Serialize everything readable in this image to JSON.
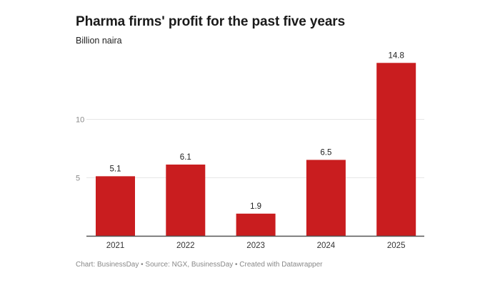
{
  "header": {
    "title": "Pharma firms' profit for the past five years",
    "subtitle": "Billion naira"
  },
  "footer": {
    "text": "Chart: BusinessDay • Source: NGX, BusinessDay • Created with Datawrapper"
  },
  "colors": {
    "bar": "#c91d1f",
    "grid": "#e6e6e6",
    "axis": "#555555"
  },
  "chart_data": {
    "type": "bar",
    "title": "Pharma firms' profit for the past five years",
    "subtitle": "Billion naira",
    "xlabel": "",
    "ylabel": "Billion naira",
    "categories": [
      "2021",
      "2022",
      "2023",
      "2024",
      "2025"
    ],
    "values": [
      5.1,
      6.1,
      1.9,
      6.5,
      14.8
    ],
    "data_labels": [
      "5.1",
      "6.1",
      "1.9",
      "6.5",
      "14.8"
    ],
    "y_ticks": [
      5,
      10
    ],
    "ylim": [
      0,
      14.8
    ],
    "grid": true,
    "legend": "none"
  }
}
